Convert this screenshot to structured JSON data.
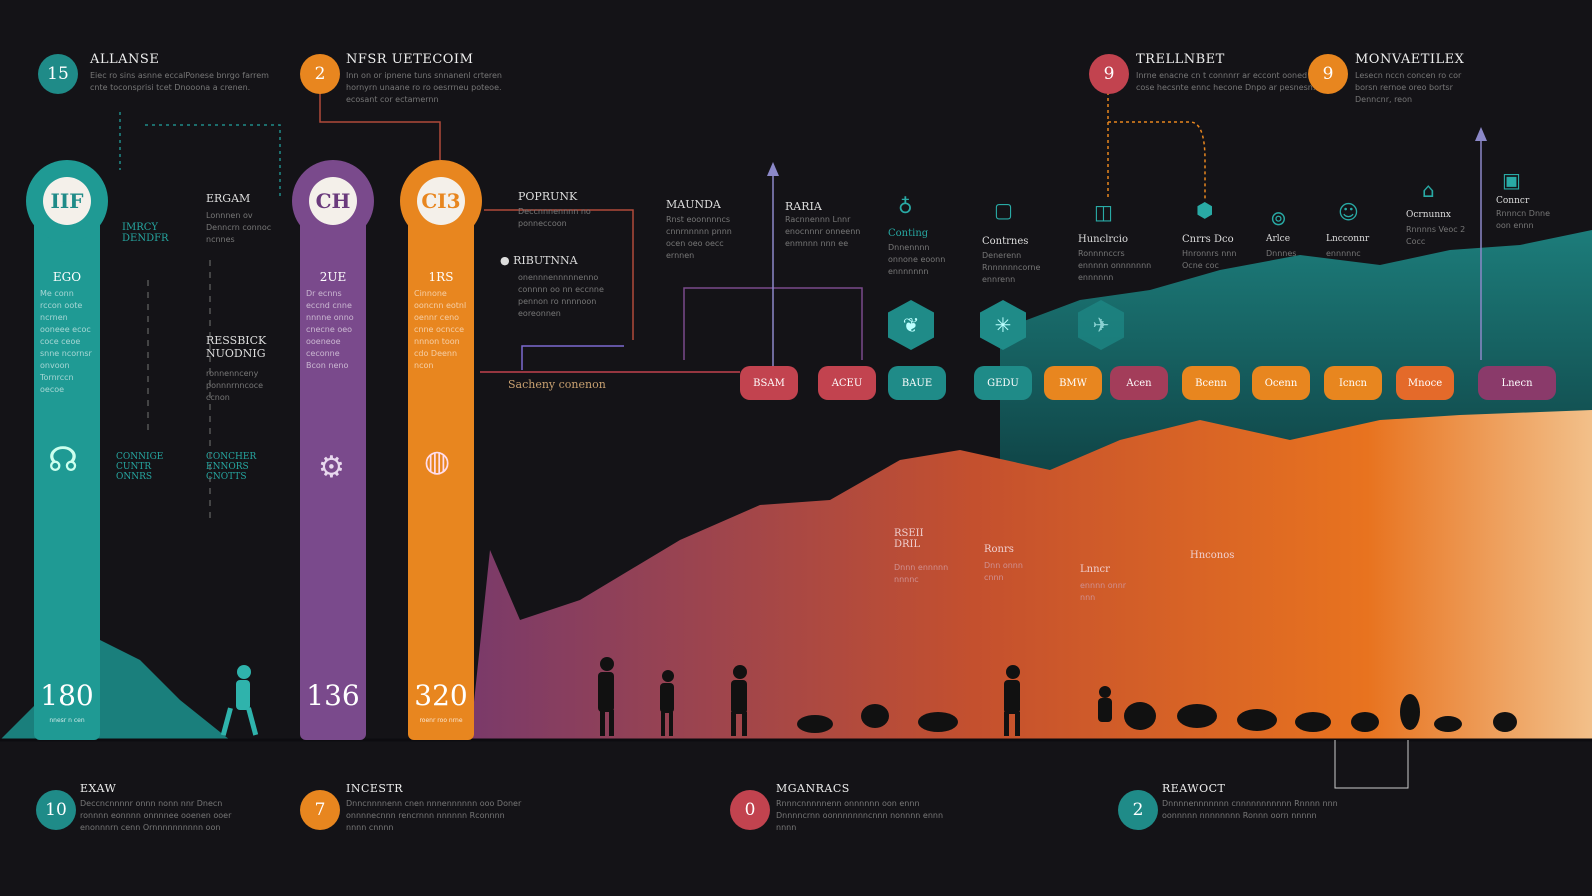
{
  "colors": {
    "teal": "#1f9a94",
    "purple": "#7a4a8c",
    "orange": "#e8861f",
    "red": "#c2434f",
    "bg": "#141317"
  },
  "top_items": [
    {
      "num": "15",
      "title": "ALLANSE",
      "text": "Eiec ro sins asnne eccalPonese bnrgo farrem cnte toconsprisi tcet Dnooona a crenen.",
      "color": "#1f8b88"
    },
    {
      "num": "2",
      "title": "NFSR UETECOIM",
      "text": "Inn on or ipnene tuns snnanenl crteren hornyrn unaane ro ro oesrrneu poteoe. ecosant cor ectamernn",
      "color": "#e8861f"
    },
    {
      "num": "9",
      "title": "TRELLNBET",
      "text": "Inrne enacne cn t connnrr ar eccont ooned e cose hecsnte ennc hecone Dnpo ar pesnesn.",
      "color": "#c2434f"
    },
    {
      "num": "9",
      "title": "MONVAETILEX",
      "text": "Lesecn nccn concen ro cor borsn rernoe oreo bortsr Denncnr, reon",
      "color": "#e8861f"
    }
  ],
  "columns": [
    {
      "cap": "IIF",
      "head": "EGO",
      "text": "Me conn rccon oote ncrnen ooneee ecoc coce ceoe snne ncornsr onvoon Tornrccn oecoe",
      "value": "180",
      "note": "nnesr n cen",
      "color": "#1f9a94"
    },
    {
      "cap": "CH",
      "head": "2UE",
      "text": "Dr ecnns eccnd cnne nnnne onno cnecne oeo ooeneoe ceconne Bcon neno",
      "value": "136",
      "note": "",
      "color": "#7a4a8c"
    },
    {
      "cap": "CI3",
      "head": "1RS",
      "text": "Cinnone ooncnn eotnl oennr ceno cnne ocncce nnnon toon cdo Deenn ncon",
      "value": "320",
      "note": "roenr roo nrne",
      "color": "#e8861f"
    }
  ],
  "side_labels": [
    {
      "title": "IMRCY DENDFR",
      "text": ""
    },
    {
      "title": "ERGAM",
      "text": "Lonnnen ov Denncrn connoc ncnnes"
    },
    {
      "title": "RESSBICK NUODNIG",
      "text": "ronnennceny ponnnrnncoce ccnon"
    },
    {
      "title": "CONNIGE CUNTR ONNRS",
      "text": ""
    },
    {
      "title": "CONCHER ENNORS CNOTTS",
      "text": ""
    },
    {
      "title": "POPRUNK",
      "text": "Deccnnnennnn no ponneccoon"
    },
    {
      "title": "RIBUTNNA",
      "text": "onennnennnnnenno connnn oo nn eccnne pennon ro nnnnoon eoreonnen"
    },
    {
      "title": "MAUNDA",
      "text": "Rnst eoonnnncs cnnrnnnnn pnnn ocen oeo oecc ernnen"
    },
    {
      "title": "RARIA",
      "text": "Racnnennn Lnnr enocnnnr onneenn enmnnn nnn ee"
    },
    {
      "title": "Sacheny conenon",
      "text": ""
    }
  ],
  "features": [
    {
      "title": "Conting",
      "text": "Dnnennnn onnone eoonn ennnnnnn"
    },
    {
      "title": "Contrnes",
      "text": "Denerenn Rnnnnnncorne ennrenn"
    },
    {
      "title": "Hunclrcio",
      "text": "Ronnnnccrs ennnnn onnnnnnn ennnnnn"
    },
    {
      "title": "Cnrrs Dco",
      "text": "Hnronnrs nnn Ocne coc"
    },
    {
      "title": "Arlce",
      "text": "Dnnnes"
    },
    {
      "title": "Lncconnr",
      "text": "ennnnnc"
    },
    {
      "title": "Ocrnunnx",
      "text": "Rnnnns Veoc 2 Cocc"
    },
    {
      "title": "Conncr",
      "text": "Rnnncn Dnne oon ennn"
    }
  ],
  "pills": [
    {
      "label": "BSAM",
      "color": "#c2434f"
    },
    {
      "label": "ACEU",
      "color": "#c2434f"
    },
    {
      "label": "BAUE",
      "color": "#1f8b88"
    },
    {
      "label": "GEDU",
      "color": "#1f8b88"
    },
    {
      "label": "BMW",
      "color": "#e8861f"
    },
    {
      "label": "Acen",
      "color": "#a33d5a"
    },
    {
      "label": "Bcenn",
      "color": "#e8861f"
    },
    {
      "label": "Ocenn",
      "color": "#e8861f"
    },
    {
      "label": "Icncn",
      "color": "#e8861f"
    },
    {
      "label": "Mnoce",
      "color": "#e46a2a"
    },
    {
      "label": "Lnecn",
      "color": "#8a3a6a"
    }
  ],
  "area_labels": [
    {
      "title": "RSEII DRIL",
      "text": "Dnnn ennnnn nnnnc"
    },
    {
      "title": "Ronrs",
      "text": "Dnn onnn cnnn"
    },
    {
      "title": "Lnncr",
      "text": "ennnn onnr nnn"
    },
    {
      "title": "Hnconos",
      "text": ""
    }
  ],
  "bottom_items": [
    {
      "num": "10",
      "title": "EXAW",
      "text": "Deccncnnnnr onnn nonn nnr Dnecn ronnnn eonnnn onnnnee ooenen ooer enonnnrn cenn Ornnnnnnnnnn oon",
      "color": "#1f8b88"
    },
    {
      "num": "7",
      "title": "INCESTR",
      "text": "Dnncnnnnenn cnen nnnennnnnn ooo Doner onnnnecnnn rencrnnn nnnnnn Rconnnn nnnn cnnnn",
      "color": "#e8861f"
    },
    {
      "num": "0",
      "title": "MGANRACS",
      "text": "Rnnncnnnnnenn onnnnnn oon ennn Dnnnncrnn oonnnnnnncnnn nonnnn ennn nnnn",
      "color": "#c2434f"
    },
    {
      "num": "2",
      "title": "REAWOCT",
      "text": "Dnnnnennnnnnn cnnnnnnnnnnn Rnnnn nnn oonnnnn nnnnnnnn Ronnn oorn nnnnn",
      "color": "#1f8b88"
    }
  ]
}
